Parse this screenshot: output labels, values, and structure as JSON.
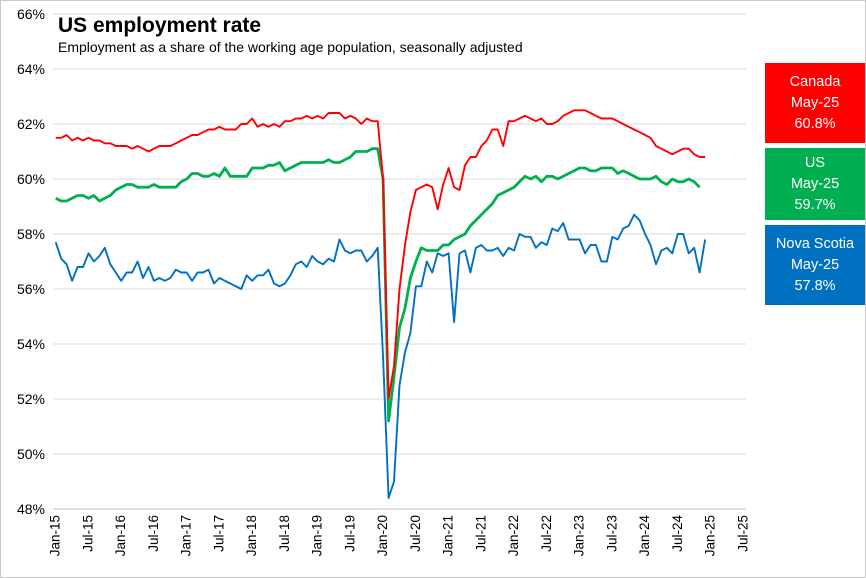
{
  "title": "US employment rate",
  "subtitle": "Employment  as a share of the working age population,  seasonally adjusted",
  "legend": [
    {
      "name": "Canada",
      "date": "May-25",
      "value": "60.8%",
      "color": "#ff0000"
    },
    {
      "name": "US",
      "date": "May-25",
      "value": "59.7%",
      "color": "#00b050"
    },
    {
      "name": "Nova Scotia",
      "date": "May-25",
      "value": "57.8%",
      "color": "#0070c0"
    }
  ],
  "chart_data": {
    "type": "line",
    "title": "US employment rate",
    "subtitle": "Employment  as a share of the working age population,  seasonally adjusted",
    "xlabel": "",
    "ylabel": "",
    "ylim": [
      48,
      66
    ],
    "yticks": [
      48,
      50,
      52,
      54,
      56,
      58,
      60,
      62,
      64,
      66
    ],
    "ytick_labels": [
      "48%",
      "50%",
      "52%",
      "54%",
      "56%",
      "58%",
      "60%",
      "62%",
      "64%",
      "66%"
    ],
    "x_start": "Jan-15",
    "x_end": "Jul-25",
    "xtick_labels": [
      "Jan-15",
      "Jul-15",
      "Jan-16",
      "Jul-16",
      "Jan-17",
      "Jul-17",
      "Jan-18",
      "Jul-18",
      "Jan-19",
      "Jul-19",
      "Jan-20",
      "Jul-20",
      "Jan-21",
      "Jul-21",
      "Jan-22",
      "Jul-22",
      "Jan-23",
      "Jul-23",
      "Jan-24",
      "Jul-24",
      "Jan-25",
      "Jul-25"
    ],
    "grid": true,
    "series": [
      {
        "name": "Canada",
        "color": "#ff0000",
        "values": [
          61.5,
          61.5,
          61.6,
          61.4,
          61.5,
          61.4,
          61.5,
          61.4,
          61.4,
          61.3,
          61.3,
          61.2,
          61.2,
          61.2,
          61.1,
          61.2,
          61.1,
          61.0,
          61.1,
          61.2,
          61.2,
          61.2,
          61.3,
          61.4,
          61.5,
          61.6,
          61.6,
          61.7,
          61.8,
          61.8,
          61.9,
          61.8,
          61.8,
          61.8,
          62.0,
          62.0,
          62.2,
          61.9,
          62.0,
          61.9,
          62.0,
          61.9,
          62.1,
          62.1,
          62.2,
          62.2,
          62.3,
          62.2,
          62.3,
          62.2,
          62.4,
          62.4,
          62.4,
          62.2,
          62.3,
          62.2,
          62.0,
          62.2,
          62.1,
          62.1,
          60.0,
          52.0,
          53.2,
          56.0,
          57.6,
          58.8,
          59.6,
          59.7,
          59.8,
          59.7,
          58.9,
          59.8,
          60.4,
          59.7,
          59.6,
          60.5,
          60.8,
          60.8,
          61.2,
          61.4,
          61.8,
          61.8,
          61.2,
          62.1,
          62.1,
          62.2,
          62.3,
          62.2,
          62.1,
          62.2,
          62.0,
          62.0,
          62.1,
          62.3,
          62.4,
          62.5,
          62.5,
          62.5,
          62.4,
          62.3,
          62.2,
          62.2,
          62.2,
          62.1,
          62.0,
          61.9,
          61.8,
          61.7,
          61.6,
          61.5,
          61.2,
          61.1,
          61.0,
          60.9,
          61.0,
          61.1,
          61.1,
          60.9,
          60.8,
          60.8
        ]
      },
      {
        "name": "US",
        "color": "#00b050",
        "values": [
          59.3,
          59.2,
          59.2,
          59.3,
          59.4,
          59.4,
          59.3,
          59.4,
          59.2,
          59.3,
          59.4,
          59.6,
          59.7,
          59.8,
          59.8,
          59.7,
          59.7,
          59.7,
          59.8,
          59.7,
          59.7,
          59.7,
          59.7,
          59.9,
          60.0,
          60.2,
          60.2,
          60.1,
          60.1,
          60.2,
          60.1,
          60.4,
          60.1,
          60.1,
          60.1,
          60.1,
          60.4,
          60.4,
          60.4,
          60.5,
          60.5,
          60.6,
          60.3,
          60.4,
          60.5,
          60.6,
          60.6,
          60.6,
          60.6,
          60.6,
          60.7,
          60.6,
          60.6,
          60.7,
          60.8,
          61.0,
          61.0,
          61.0,
          61.1,
          61.1,
          60.0,
          51.2,
          52.8,
          54.6,
          55.3,
          56.4,
          57.0,
          57.5,
          57.4,
          57.4,
          57.4,
          57.6,
          57.6,
          57.8,
          57.9,
          58.0,
          58.3,
          58.5,
          58.7,
          58.9,
          59.1,
          59.4,
          59.5,
          59.6,
          59.7,
          59.9,
          60.1,
          60.0,
          60.1,
          59.9,
          60.1,
          60.1,
          60.0,
          60.1,
          60.2,
          60.3,
          60.4,
          60.4,
          60.3,
          60.3,
          60.4,
          60.4,
          60.4,
          60.2,
          60.3,
          60.2,
          60.1,
          60.0,
          60.0,
          60.0,
          60.1,
          59.9,
          59.8,
          60.0,
          59.9,
          59.9,
          60.0,
          59.9,
          59.7
        ]
      },
      {
        "name": "Nova Scotia",
        "color": "#0070c0",
        "values": [
          57.7,
          57.1,
          56.9,
          56.3,
          56.8,
          56.8,
          57.3,
          57.0,
          57.2,
          57.5,
          56.9,
          56.6,
          56.3,
          56.6,
          56.6,
          57.0,
          56.4,
          56.8,
          56.3,
          56.4,
          56.3,
          56.4,
          56.7,
          56.6,
          56.6,
          56.3,
          56.6,
          56.6,
          56.7,
          56.2,
          56.4,
          56.3,
          56.2,
          56.1,
          56.0,
          56.5,
          56.3,
          56.5,
          56.5,
          56.7,
          56.2,
          56.1,
          56.2,
          56.5,
          56.9,
          57.0,
          56.8,
          57.2,
          57.0,
          56.9,
          57.1,
          57.0,
          57.8,
          57.4,
          57.3,
          57.4,
          57.4,
          57.0,
          57.2,
          57.5,
          53.5,
          48.4,
          49.0,
          52.5,
          53.7,
          54.4,
          56.1,
          56.1,
          57.0,
          56.6,
          57.3,
          57.2,
          57.3,
          54.8,
          57.3,
          57.4,
          56.6,
          57.5,
          57.6,
          57.4,
          57.4,
          57.5,
          57.2,
          57.5,
          57.4,
          58.0,
          57.9,
          57.9,
          57.5,
          57.7,
          57.6,
          58.2,
          58.1,
          58.4,
          57.8,
          57.8,
          57.8,
          57.3,
          57.6,
          57.6,
          57.0,
          57.0,
          57.9,
          57.8,
          58.2,
          58.3,
          58.7,
          58.5,
          58.0,
          57.6,
          56.9,
          57.4,
          57.5,
          57.3,
          58.0,
          58.0,
          57.3,
          57.5,
          56.6,
          57.8
        ]
      }
    ]
  }
}
